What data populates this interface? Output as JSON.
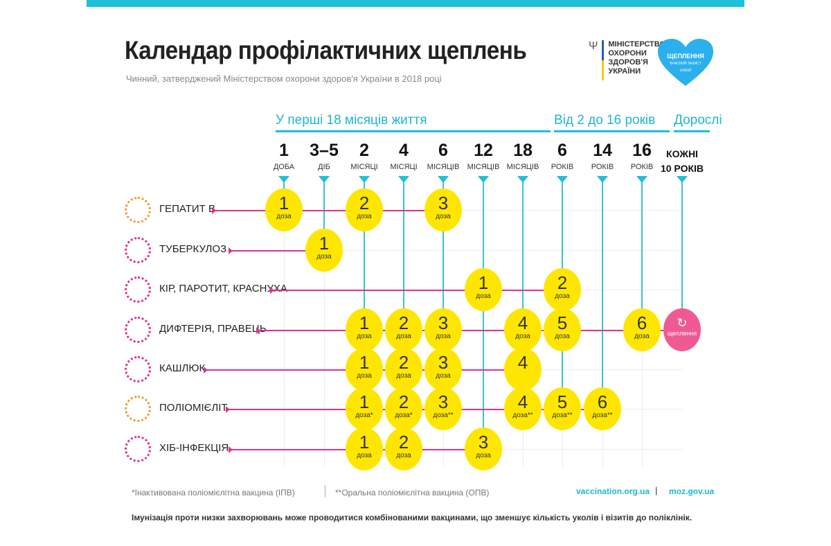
{
  "header": {
    "title": "Календар профілактичних щеплень",
    "subtitle": "Чинний, затверджений Міністерством охорони здоров'я України в 2018 році",
    "ministry_logo": [
      "МІНІСТЕРСТВО",
      "ОХОРОНИ",
      "ЗДОРОВ'Я",
      "УКРАЇНИ"
    ],
    "unicef_logo": {
      "line1": "ЩЕПЛЕННЯ",
      "line2": "ВЧАСНИЙ ЗАХИСТ",
      "line3": "unicef"
    }
  },
  "colors": {
    "accent": "#1fc0d8",
    "row_line": "#e0308f",
    "dose": "#ffe600",
    "adult_dose": "#ef5a95"
  },
  "groups": [
    {
      "label": "У перші 18 місяців життя",
      "from": 0,
      "to": 6
    },
    {
      "label": "Від 2 до 16 років",
      "from": 7,
      "to": 9
    },
    {
      "label": "Дорослі",
      "from": 10,
      "to": 10
    }
  ],
  "columns": [
    {
      "num": "1",
      "unit": "ДОБА"
    },
    {
      "num": "3–5",
      "unit": "ДІБ"
    },
    {
      "num": "2",
      "unit": "МІСЯЦІ"
    },
    {
      "num": "4",
      "unit": "МІСЯЦІ"
    },
    {
      "num": "6",
      "unit": "МІСЯЦІВ"
    },
    {
      "num": "12",
      "unit": "МІСЯЦІВ"
    },
    {
      "num": "18",
      "unit": "МІСЯЦІВ"
    },
    {
      "num": "6",
      "unit": "РОКІВ"
    },
    {
      "num": "14",
      "unit": "РОКІВ"
    },
    {
      "num": "16",
      "unit": "РОКІВ"
    },
    {
      "num": "КОЖНІ",
      "unit": "10 РОКІВ"
    }
  ],
  "rows": [
    {
      "label": "ГЕПАТИТ В",
      "icon": "virus-icon",
      "doses": [
        {
          "col": 0,
          "n": "1",
          "l": "доза"
        },
        {
          "col": 2,
          "n": "2",
          "l": "доза"
        },
        {
          "col": 4,
          "n": "3",
          "l": "доза"
        }
      ]
    },
    {
      "label": "ТУБЕРКУЛОЗ",
      "icon": "bacteria-icon",
      "doses": [
        {
          "col": 1,
          "n": "1",
          "l": "доза"
        }
      ]
    },
    {
      "label": "КІР, ПАРОТИТ, КРАСНУХА",
      "icon": "virus-icon",
      "doses": [
        {
          "col": 5,
          "n": "1",
          "l": "доза"
        },
        {
          "col": 7,
          "n": "2",
          "l": "доза"
        }
      ]
    },
    {
      "label": "ДИФТЕРІЯ, ПРАВЕЦЬ",
      "icon": "bacteria-icon",
      "doses": [
        {
          "col": 2,
          "n": "1",
          "l": "доза"
        },
        {
          "col": 3,
          "n": "2",
          "l": "доза"
        },
        {
          "col": 4,
          "n": "3",
          "l": "доза"
        },
        {
          "col": 6,
          "n": "4",
          "l": "доза"
        },
        {
          "col": 7,
          "n": "5",
          "l": "доза"
        },
        {
          "col": 9,
          "n": "6",
          "l": "доза"
        },
        {
          "col": 10,
          "n": "↻",
          "l": "щеплення",
          "adult": true
        }
      ]
    },
    {
      "label": "КАШЛЮК",
      "icon": "bacteria-icon",
      "doses": [
        {
          "col": 2,
          "n": "1",
          "l": "доза"
        },
        {
          "col": 3,
          "n": "2",
          "l": "доза"
        },
        {
          "col": 4,
          "n": "3",
          "l": "доза"
        },
        {
          "col": 6,
          "n": "4",
          "l": ""
        }
      ]
    },
    {
      "label": "ПОЛІОМІЄЛІТ",
      "icon": "virus-icon",
      "doses": [
        {
          "col": 2,
          "n": "1",
          "l": "доза*"
        },
        {
          "col": 3,
          "n": "2",
          "l": "доза*"
        },
        {
          "col": 4,
          "n": "3",
          "l": "доза**"
        },
        {
          "col": 6,
          "n": "4",
          "l": "доза**"
        },
        {
          "col": 7,
          "n": "5",
          "l": "доза**"
        },
        {
          "col": 8,
          "n": "6",
          "l": "доза**"
        }
      ]
    },
    {
      "label": "ХІБ-ІНФЕКЦІЯ",
      "icon": "bacteria-icon",
      "doses": [
        {
          "col": 2,
          "n": "1",
          "l": "доза"
        },
        {
          "col": 3,
          "n": "2",
          "l": "доза"
        },
        {
          "col": 5,
          "n": "3",
          "l": "доза"
        }
      ]
    }
  ],
  "footer": {
    "footnote1": "*Інактивована поліомієлітна вакцина (ІПВ)",
    "footnote2": "**Оральна поліомієлітна вакцина (ОПВ)",
    "site1": "vaccination.org.ua",
    "separator": "|",
    "site2": "moz.gov.ua",
    "note": "Імунізація проти низки захворювань може проводитися комбінованими вакцинами, що зменшує кількість уколів і візитів до поліклінік."
  }
}
